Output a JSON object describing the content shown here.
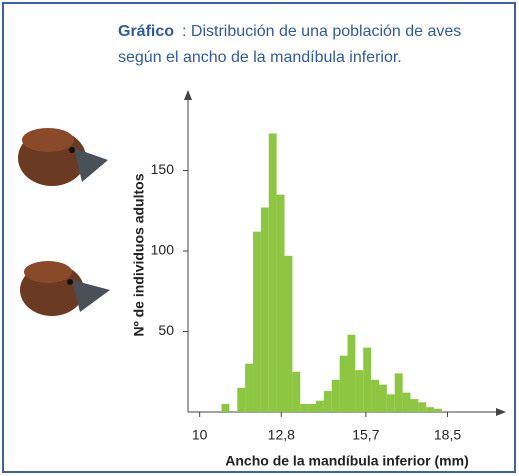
{
  "chart_data": {
    "type": "histogram",
    "title_label": "Gráfico",
    "title": ": Distribución de una población de aves",
    "subtitle": "según el ancho de la mandíbula inferior.",
    "x_label": "Ancho de la mandíbula inferior (mm)",
    "y_label": "Nº de individuos adultos",
    "color": "#8dc640",
    "bins": [
      10.75,
      11.02,
      11.29,
      11.56,
      11.83,
      12.1,
      12.37,
      12.64,
      12.91,
      13.18,
      13.45,
      13.72,
      13.99,
      14.26,
      14.53,
      14.8,
      15.07,
      15.34,
      15.61,
      15.88,
      16.15,
      16.42,
      16.69,
      16.96,
      17.23,
      17.5,
      17.77,
      18.04,
      18.31
    ],
    "values": [
      5,
      0,
      15,
      30,
      112,
      127,
      173,
      135,
      97,
      25,
      5,
      5,
      7,
      13,
      20,
      35,
      48,
      26,
      40,
      20,
      17,
      11,
      24,
      12,
      8,
      6,
      3,
      2
    ],
    "xlim": [
      9.6,
      20.3
    ],
    "ylim": [
      0,
      200
    ],
    "xticks": [
      10,
      {
        "value": 12.8,
        "label": "12,8"
      },
      {
        "value": 15.7,
        "label": "15,7"
      },
      {
        "value": 18.5,
        "label": "18,5"
      }
    ],
    "yticks": [
      50,
      100,
      150
    ]
  }
}
